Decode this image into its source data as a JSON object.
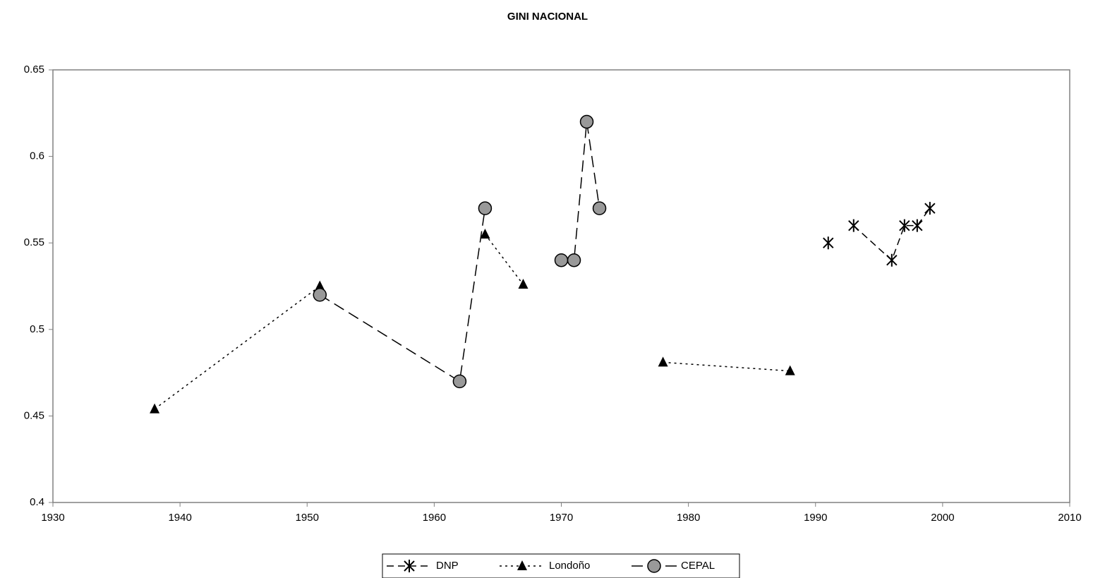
{
  "chart_data": {
    "type": "line",
    "title": "GINI NACIONAL",
    "xlim": [
      1930,
      2010
    ],
    "xticks": [
      1930,
      1940,
      1950,
      1960,
      1970,
      1980,
      1990,
      2000,
      2010
    ],
    "ylim": [
      0.4,
      0.65
    ],
    "yticks": [
      0.4,
      0.45,
      0.5,
      0.55,
      0.6,
      0.65
    ],
    "legend": "bottom",
    "series": [
      {
        "name": "DNP",
        "color": "#000000",
        "marker": "asterisk",
        "dash": "dashed",
        "x": [
          1991,
          null,
          1993,
          1996,
          1997,
          1998,
          1999
        ],
        "values": [
          0.55,
          null,
          0.56,
          0.54,
          0.56,
          0.56,
          0.57
        ]
      },
      {
        "name": "Londoño",
        "color": "#000000",
        "marker": "triangle",
        "dash": "dotted",
        "x": [
          1938,
          1951,
          null,
          1964,
          1967,
          null,
          1978,
          1988
        ],
        "values": [
          0.454,
          0.525,
          null,
          0.555,
          0.526,
          null,
          0.481,
          0.476
        ]
      },
      {
        "name": "CEPAL",
        "color": "#999999",
        "marker": "circle",
        "dash": "longdash",
        "x": [
          1951,
          1962,
          1964,
          null,
          1970,
          1971,
          1972,
          1973
        ],
        "values": [
          0.52,
          0.47,
          0.57,
          null,
          0.54,
          0.54,
          0.62,
          0.57
        ]
      }
    ]
  }
}
